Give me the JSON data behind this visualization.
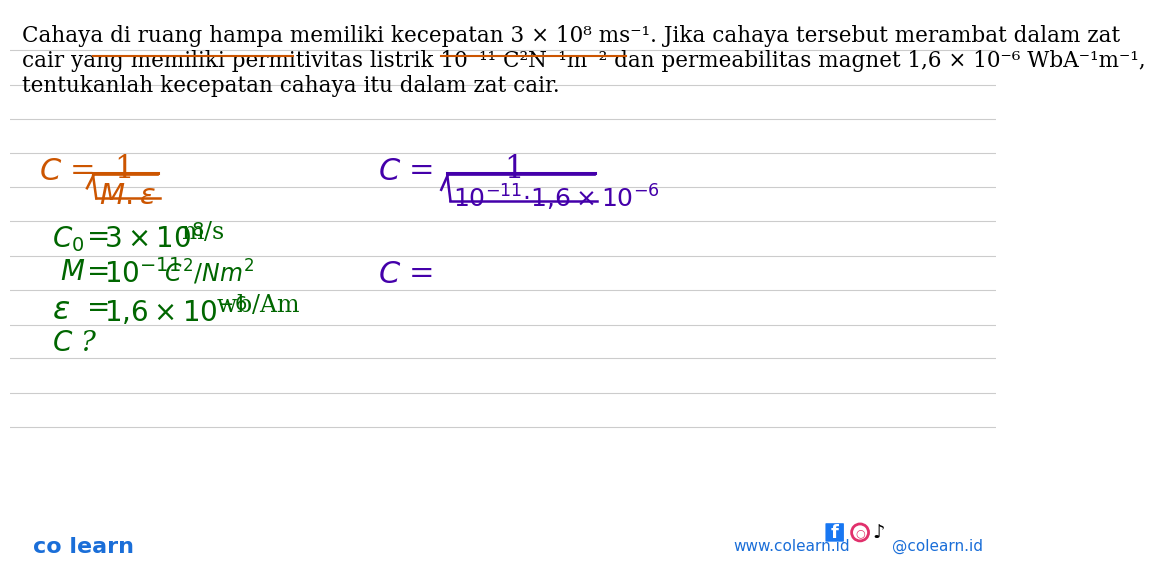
{
  "bg_color": "#ffffff",
  "line_color": "#cccccc",
  "text_color": "#000000",
  "orange_color": "#cc5500",
  "green_color": "#006600",
  "purple_color": "#4400aa",
  "blue_color": "#1a6ed8",
  "underline_color": "#cc5500",
  "title_line1": "Cahaya di ruang hampa memiliki kecepatan 3 × 10⁸ ms⁻¹. Jika cahaya tersebut merambat dalam zat",
  "title_line2": "cair yang memiliki permitivitas listrik 10⁻¹¹ C²N⁻¹m⁻² dan permeabilitas magnet 1,6 × 10⁻⁶ WbA⁻¹m⁻¹,",
  "title_line3": "tentukanlah kecepatan cahaya itu dalam zat cair.",
  "footer_left": "co learn",
  "footer_right": "www.colearn.id",
  "footer_social": "@colearn.id"
}
